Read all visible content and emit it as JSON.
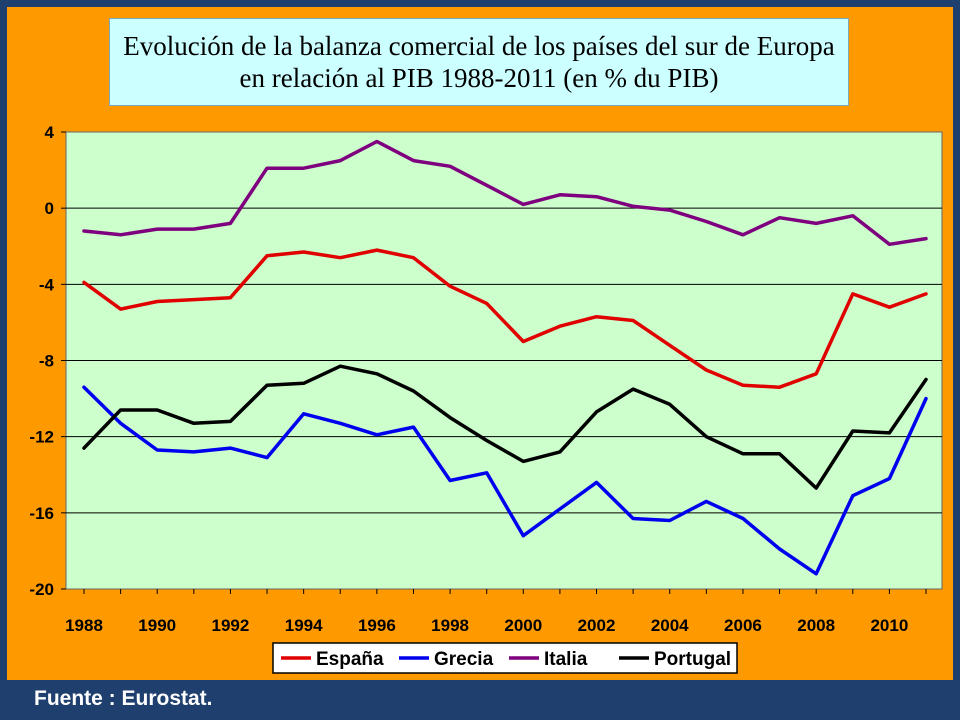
{
  "chart_data": {
    "type": "line",
    "title": "Evolución de la balanza comercial de los países del sur de Europa",
    "subtitle": "en relación al PIB 1988-2011 (en % du PIB)",
    "x": [
      1988,
      1989,
      1990,
      1991,
      1992,
      1993,
      1994,
      1995,
      1996,
      1997,
      1998,
      1999,
      2000,
      2001,
      2002,
      2003,
      2004,
      2005,
      2006,
      2007,
      2008,
      2009,
      2010,
      2011
    ],
    "x_tick_labels": [
      "1988",
      "1990",
      "1992",
      "1994",
      "1996",
      "1998",
      "2000",
      "2002",
      "2004",
      "2006",
      "2008",
      "2010"
    ],
    "y_tick_labels": [
      "4",
      "0",
      "-4",
      "-8",
      "-12",
      "-16",
      "-20"
    ],
    "ylim": [
      -20,
      4
    ],
    "y_ticks": [
      4,
      0,
      -4,
      -8,
      -12,
      -16,
      -20
    ],
    "grid": "horizontal",
    "legend_position": "bottom",
    "series": [
      {
        "name": "España",
        "color": "#e00000",
        "values": [
          -3.9,
          -5.3,
          -4.9,
          -4.8,
          -4.7,
          -2.5,
          -2.3,
          -2.6,
          -2.2,
          -2.6,
          -4.1,
          -5.0,
          -7.0,
          -6.2,
          -5.7,
          -5.9,
          -7.2,
          -8.5,
          -9.3,
          -9.4,
          -8.7,
          -4.5,
          -5.2,
          -4.5
        ]
      },
      {
        "name": "Grecia",
        "color": "#0000ee",
        "values": [
          -9.4,
          -11.3,
          -12.7,
          -12.8,
          -12.6,
          -13.1,
          -10.8,
          -11.3,
          -11.9,
          -11.5,
          -14.3,
          -13.9,
          -17.2,
          -15.8,
          -14.4,
          -16.3,
          -16.4,
          -15.4,
          -16.3,
          -17.9,
          -19.2,
          -15.1,
          -14.2,
          -10.0
        ]
      },
      {
        "name": "Italia",
        "color": "#7f007f",
        "values": [
          -1.2,
          -1.4,
          -1.1,
          -1.1,
          -0.8,
          2.1,
          2.1,
          2.5,
          3.5,
          2.5,
          2.2,
          1.2,
          0.2,
          0.7,
          0.6,
          0.1,
          -0.1,
          -0.7,
          -1.4,
          -0.5,
          -0.8,
          -0.4,
          -1.9,
          -1.6
        ]
      },
      {
        "name": "Portugal",
        "color": "#000000",
        "values": [
          -12.6,
          -10.6,
          -10.6,
          -11.3,
          -11.2,
          -9.3,
          -9.2,
          -8.3,
          -8.7,
          -9.6,
          -11.0,
          -12.2,
          -13.3,
          -12.8,
          -10.7,
          -9.5,
          -10.3,
          -12.0,
          -12.9,
          -12.9,
          -14.7,
          -11.7,
          -11.8,
          -9.0
        ]
      }
    ]
  },
  "footer": {
    "source": "Fuente : Eurostat."
  }
}
